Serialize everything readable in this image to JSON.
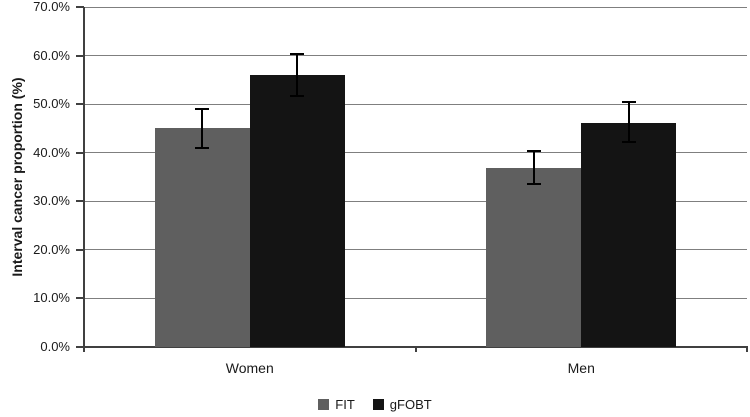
{
  "chart_data": {
    "type": "bar",
    "title": "",
    "categories": [
      "Women",
      "Men"
    ],
    "series": [
      {
        "name": "FIT",
        "color": "#5f5f5f",
        "values": [
          45.0,
          36.9
        ],
        "ci_upper": [
          49.0,
          40.4
        ],
        "ci_lower": [
          41.0,
          33.5
        ]
      },
      {
        "name": "gFOBT",
        "color": "#141414",
        "values": [
          56.0,
          46.1
        ],
        "ci_upper": [
          60.3,
          50.4
        ],
        "ci_lower": [
          51.7,
          42.3
        ]
      }
    ],
    "xlabel": "",
    "ylabel": "Interval cancer proportion (%)",
    "ylim": [
      0,
      70
    ],
    "ytick_step": 10,
    "ytick_labels": [
      "0.0%",
      "10.0%",
      "20.0%",
      "30.0%",
      "40.0%",
      "50.0%",
      "60.0%",
      "70.0%"
    ],
    "grid": true,
    "legend_position": "bottom",
    "error_bars": true
  },
  "style": {
    "grid_color": "#7f7f7f",
    "axis_color": "#404040",
    "text_color": "#1a1a1a",
    "error_bar_color": "#000000",
    "background": "#ffffff"
  }
}
